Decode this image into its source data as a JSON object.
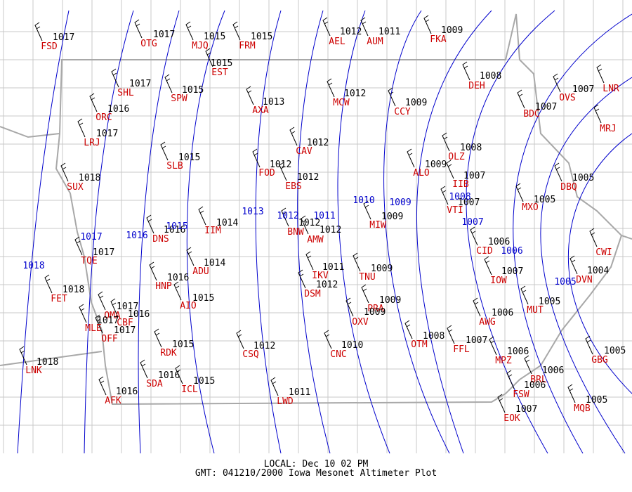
{
  "stations": [
    {
      "id": "FSD",
      "pressure": 1017
    },
    {
      "id": "OTG",
      "pressure": 1017
    },
    {
      "id": "MJQ",
      "pressure": 1015
    },
    {
      "id": "FRM",
      "pressure": 1015
    },
    {
      "id": "EST",
      "pressure": 1015
    },
    {
      "id": "AEL",
      "pressure": 1012
    },
    {
      "id": "AUM",
      "pressure": 1011
    },
    {
      "id": "FKA",
      "pressure": 1009
    },
    {
      "id": "SHL",
      "pressure": 1017
    },
    {
      "id": "SPW",
      "pressure": 1015
    },
    {
      "id": "AXA",
      "pressure": 1013
    },
    {
      "id": "MCW",
      "pressure": 1012
    },
    {
      "id": "CCY",
      "pressure": 1009
    },
    {
      "id": "DEH",
      "pressure": 1008
    },
    {
      "id": "OVS",
      "pressure": 1007
    },
    {
      "id": "LNR"
    },
    {
      "id": "MRJ"
    },
    {
      "id": "ORC",
      "pressure": 1016
    },
    {
      "id": "LRJ",
      "pressure": 1017
    },
    {
      "id": "BDC",
      "pressure": 1007
    },
    {
      "id": "CAV",
      "pressure": 1012
    },
    {
      "id": "FOD",
      "pressure": 1012
    },
    {
      "id": "EBS",
      "pressure": 1012
    },
    {
      "id": "OLZ",
      "pressure": 1008
    },
    {
      "id": "ALO",
      "pressure": 1009
    },
    {
      "id": "IIB",
      "pressure": 1007
    },
    {
      "id": "SLB",
      "pressure": 1015
    },
    {
      "id": "SUX",
      "pressure": 1018
    },
    {
      "id": "DBQ",
      "pressure": 1005
    },
    {
      "id": "VTI",
      "pressure": 1007
    },
    {
      "id": "MXO",
      "pressure": 1005
    },
    {
      "id": "DNS",
      "pressure": 1016
    },
    {
      "id": "IIM",
      "pressure": 1014
    },
    {
      "id": "BNW",
      "pressure": 1012
    },
    {
      "id": "AMW",
      "pressure": 1012
    },
    {
      "id": "MIW",
      "pressure": 1009
    },
    {
      "id": "CID",
      "pressure": 1006
    },
    {
      "id": "CWI"
    },
    {
      "id": "TQE",
      "pressure": 1017
    },
    {
      "id": "ADU",
      "pressure": 1014
    },
    {
      "id": "IKV",
      "pressure": 1011
    },
    {
      "id": "TNU",
      "pressure": 1009
    },
    {
      "id": "IOW",
      "pressure": 1007
    },
    {
      "id": "DVN",
      "pressure": 1004
    },
    {
      "id": "FET",
      "pressure": 1018
    },
    {
      "id": "HNP",
      "pressure": 1016
    },
    {
      "id": "DSM",
      "pressure": 1012
    },
    {
      "id": "PRA",
      "pressure": 1009
    },
    {
      "id": "AIO",
      "pressure": 1015
    },
    {
      "id": "MUT",
      "pressure": 1005
    },
    {
      "id": "OMA",
      "pressure": 1017
    },
    {
      "id": "CBF",
      "pressure": 1016
    },
    {
      "id": "MLE",
      "pressure": 1017
    },
    {
      "id": "OFF",
      "pressure": 1017
    },
    {
      "id": "OXV",
      "pressure": 1009
    },
    {
      "id": "AWG",
      "pressure": 1006
    },
    {
      "id": "OTM",
      "pressure": 1008
    },
    {
      "id": "FFL",
      "pressure": 1007
    },
    {
      "id": "MPZ",
      "pressure": 1006
    },
    {
      "id": "RDK",
      "pressure": 1015
    },
    {
      "id": "CSQ",
      "pressure": 1012
    },
    {
      "id": "CNC",
      "pressure": 1010
    },
    {
      "id": "GBG",
      "pressure": 1005
    },
    {
      "id": "BRL",
      "pressure": 1006
    },
    {
      "id": "LNK",
      "pressure": 1018
    },
    {
      "id": "SDA",
      "pressure": 1016
    },
    {
      "id": "ICL",
      "pressure": 1015
    },
    {
      "id": "FSW",
      "pressure": 1006
    },
    {
      "id": "AFK",
      "pressure": 1016
    },
    {
      "id": "LWD",
      "pressure": 1011
    },
    {
      "id": "MQB",
      "pressure": 1005
    },
    {
      "id": "EOK",
      "pressure": 1007
    }
  ],
  "isobar_labels": [
    1018,
    1017,
    1016,
    1015,
    1013,
    1012,
    1011,
    1010,
    1009,
    1008,
    1007,
    1006,
    1005
  ],
  "footer": {
    "local": "LOCAL: Dec 10 02 PM",
    "title": "GMT: 041210/2000 Iowa Mesonet Altimeter Plot"
  }
}
